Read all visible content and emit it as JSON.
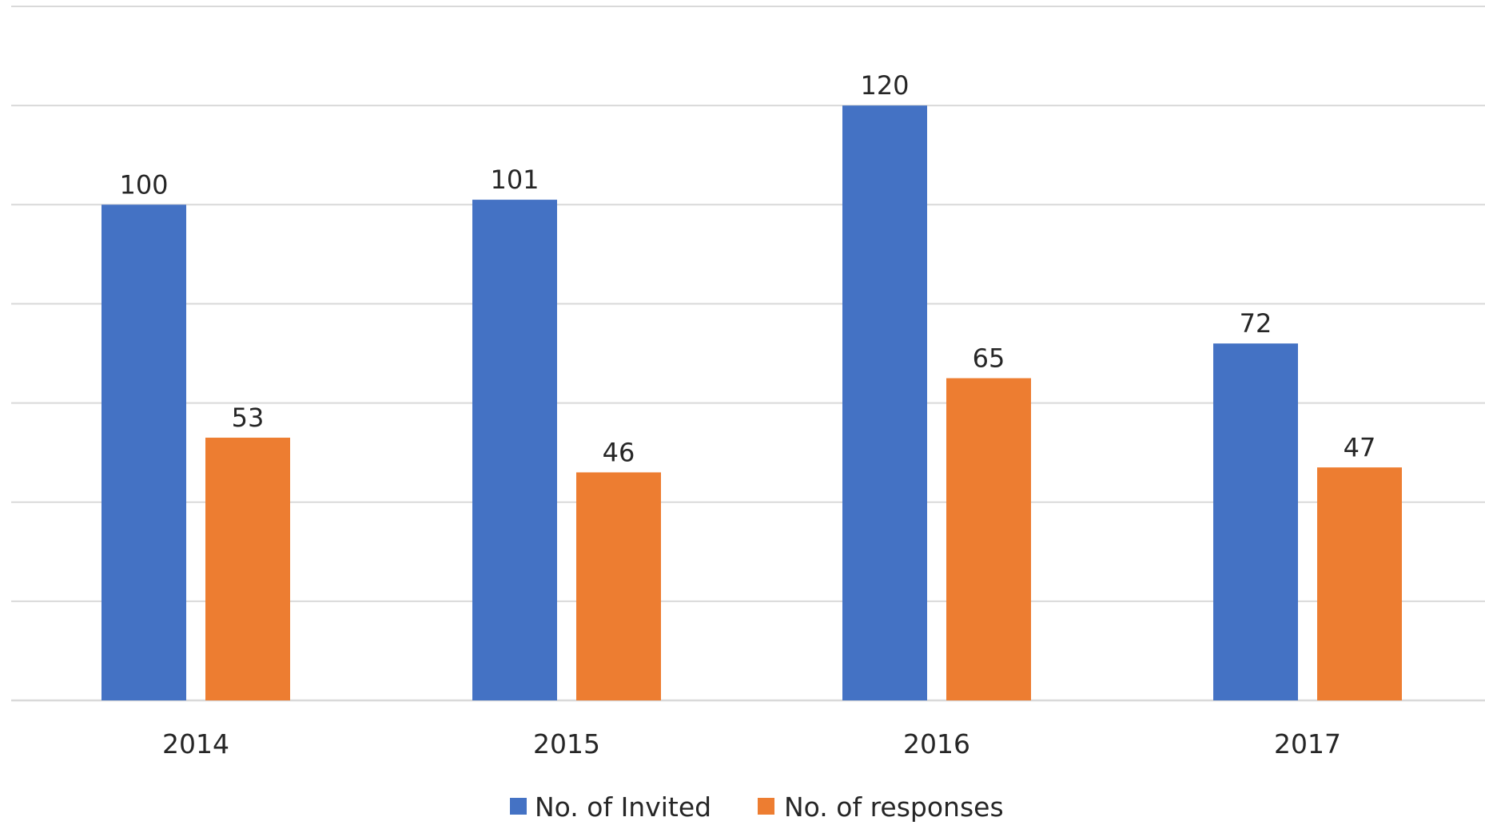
{
  "chart_data": {
    "type": "bar",
    "title": "",
    "xlabel": "",
    "ylabel": "",
    "categories": [
      "2014",
      "2015",
      "2016",
      "2017"
    ],
    "series": [
      {
        "name": "No. of Invited",
        "values": [
          100,
          101,
          120,
          72
        ],
        "color": "#4472c4"
      },
      {
        "name": "No. of responses",
        "values": [
          53,
          46,
          65,
          47
        ],
        "color": "#ed7d31"
      }
    ],
    "ylim": [
      0,
      140
    ],
    "y_gridline_step": 20,
    "y_tick_labels_shown": false,
    "grid": true,
    "data_labels": true,
    "legend_position": "bottom"
  }
}
